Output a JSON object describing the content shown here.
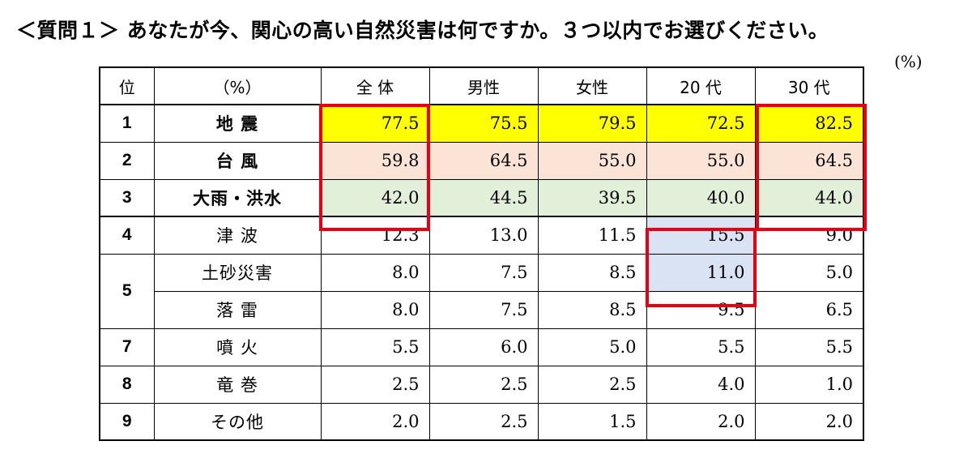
{
  "title": "＜質問１＞ あなたが今、関心の高い自然災害は何ですか。３つ以内でお選びください。",
  "unit": "(%)",
  "chart_data": {
    "type": "table",
    "columns": [
      "位",
      "（%）",
      "全 体",
      "男性",
      "女性",
      "20 代",
      "30 代"
    ],
    "rows": [
      {
        "rank": "1",
        "name": "地 震",
        "values": [
          "77.5",
          "75.5",
          "79.5",
          "72.5",
          "82.5"
        ]
      },
      {
        "rank": "2",
        "name": "台 風",
        "values": [
          "59.8",
          "64.5",
          "55.0",
          "55.0",
          "64.5"
        ]
      },
      {
        "rank": "3",
        "name": "大雨・洪水",
        "values": [
          "42.0",
          "44.5",
          "39.5",
          "40.0",
          "44.0"
        ]
      },
      {
        "rank": "4",
        "name": "津 波",
        "values": [
          "12.3",
          "13.0",
          "11.5",
          "15.5",
          "9.0"
        ]
      },
      {
        "rank": "5",
        "name": "土砂災害",
        "values": [
          "8.0",
          "7.5",
          "8.5",
          "11.0",
          "5.0"
        ]
      },
      {
        "rank": "",
        "name": "落 雷",
        "values": [
          "8.0",
          "7.5",
          "8.5",
          "9.5",
          "6.5"
        ]
      },
      {
        "rank": "7",
        "name": "噴 火",
        "values": [
          "5.5",
          "6.0",
          "5.0",
          "5.5",
          "5.5"
        ]
      },
      {
        "rank": "8",
        "name": "竜 巻",
        "values": [
          "2.5",
          "2.5",
          "2.5",
          "4.0",
          "1.0"
        ]
      },
      {
        "rank": "9",
        "name": "その他",
        "values": [
          "2.0",
          "2.5",
          "1.5",
          "2.0",
          "2.0"
        ]
      }
    ]
  },
  "colors": {
    "rank1_fill": "#ffff00",
    "rank2_fill": "#fbe4d5",
    "rank3_fill": "#e2efd9",
    "twenties_highlight_fill": "#dae3f3",
    "highlight_border": "#e60012"
  }
}
